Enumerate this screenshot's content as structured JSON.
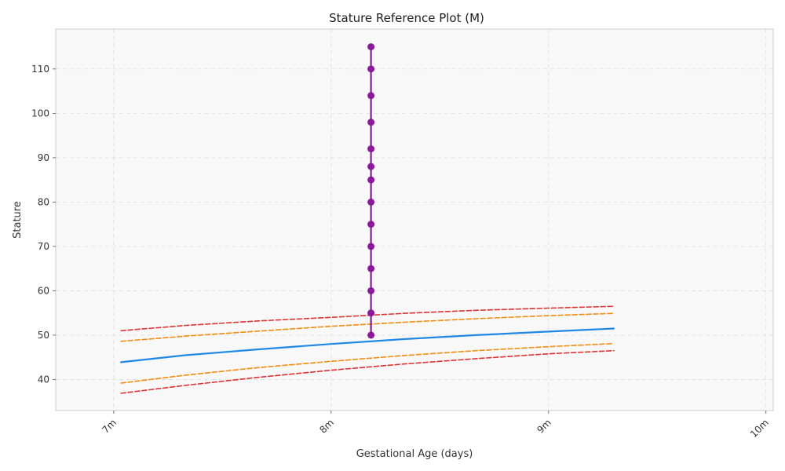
{
  "chart_data": {
    "type": "line",
    "title": "Stature Reference Plot (M)",
    "xlabel": "Gestational Age (days)",
    "ylabel": "Stature",
    "xlim": [
      202,
      301
    ],
    "ylim": [
      33,
      119
    ],
    "x_ticks": [
      {
        "value": 210,
        "label": "7m"
      },
      {
        "value": 240,
        "label": "8m"
      },
      {
        "value": 270,
        "label": "9m"
      },
      {
        "value": 300,
        "label": "10m"
      }
    ],
    "y_ticks": [
      40,
      50,
      60,
      70,
      80,
      90,
      100,
      110
    ],
    "grid": true,
    "colors": {
      "median": "#1f88e5",
      "inner_band": "#f28c0f",
      "outer_band": "#dc3434",
      "measurements": "#8b1a9b",
      "plot_background": "#f8f8f8",
      "grid": "#dddddd"
    },
    "series": [
      {
        "style": "solid",
        "color": "#1f88e5",
        "x": [
          211,
          220,
          230,
          240,
          250,
          260,
          270,
          279
        ],
        "y": [
          43.9,
          45.5,
          46.8,
          48.0,
          49.1,
          50.0,
          50.8,
          51.5
        ]
      },
      {
        "style": "dashed",
        "color": "#f28c0f",
        "x": [
          211,
          220,
          230,
          240,
          250,
          260,
          270,
          279
        ],
        "y": [
          48.6,
          49.8,
          50.9,
          52.0,
          52.9,
          53.7,
          54.4,
          54.9
        ]
      },
      {
        "style": "dashed",
        "color": "#f28c0f",
        "x": [
          211,
          220,
          230,
          240,
          250,
          260,
          270,
          279
        ],
        "y": [
          39.2,
          41.0,
          42.7,
          44.1,
          45.4,
          46.5,
          47.4,
          48.1
        ]
      },
      {
        "style": "dashed",
        "color": "#dc3434",
        "x": [
          211,
          220,
          230,
          240,
          250,
          260,
          270,
          279
        ],
        "y": [
          51.0,
          52.2,
          53.2,
          54.0,
          54.9,
          55.6,
          56.1,
          56.5
        ]
      },
      {
        "style": "dashed",
        "color": "#dc3434",
        "x": [
          211,
          220,
          230,
          240,
          250,
          260,
          270,
          279
        ],
        "y": [
          36.9,
          38.7,
          40.5,
          42.1,
          43.5,
          44.7,
          45.8,
          46.5
        ]
      },
      {
        "style": "line-markers",
        "color": "#8b1a9b",
        "x": [
          245.5,
          245.5,
          245.5,
          245.5,
          245.5,
          245.5,
          245.5,
          245.5,
          245.5,
          245.5,
          245.5,
          245.5,
          245.5,
          245.5
        ],
        "y": [
          50,
          55,
          60,
          65,
          70,
          75,
          80,
          85,
          88,
          92,
          98,
          104,
          110,
          115
        ]
      }
    ]
  }
}
